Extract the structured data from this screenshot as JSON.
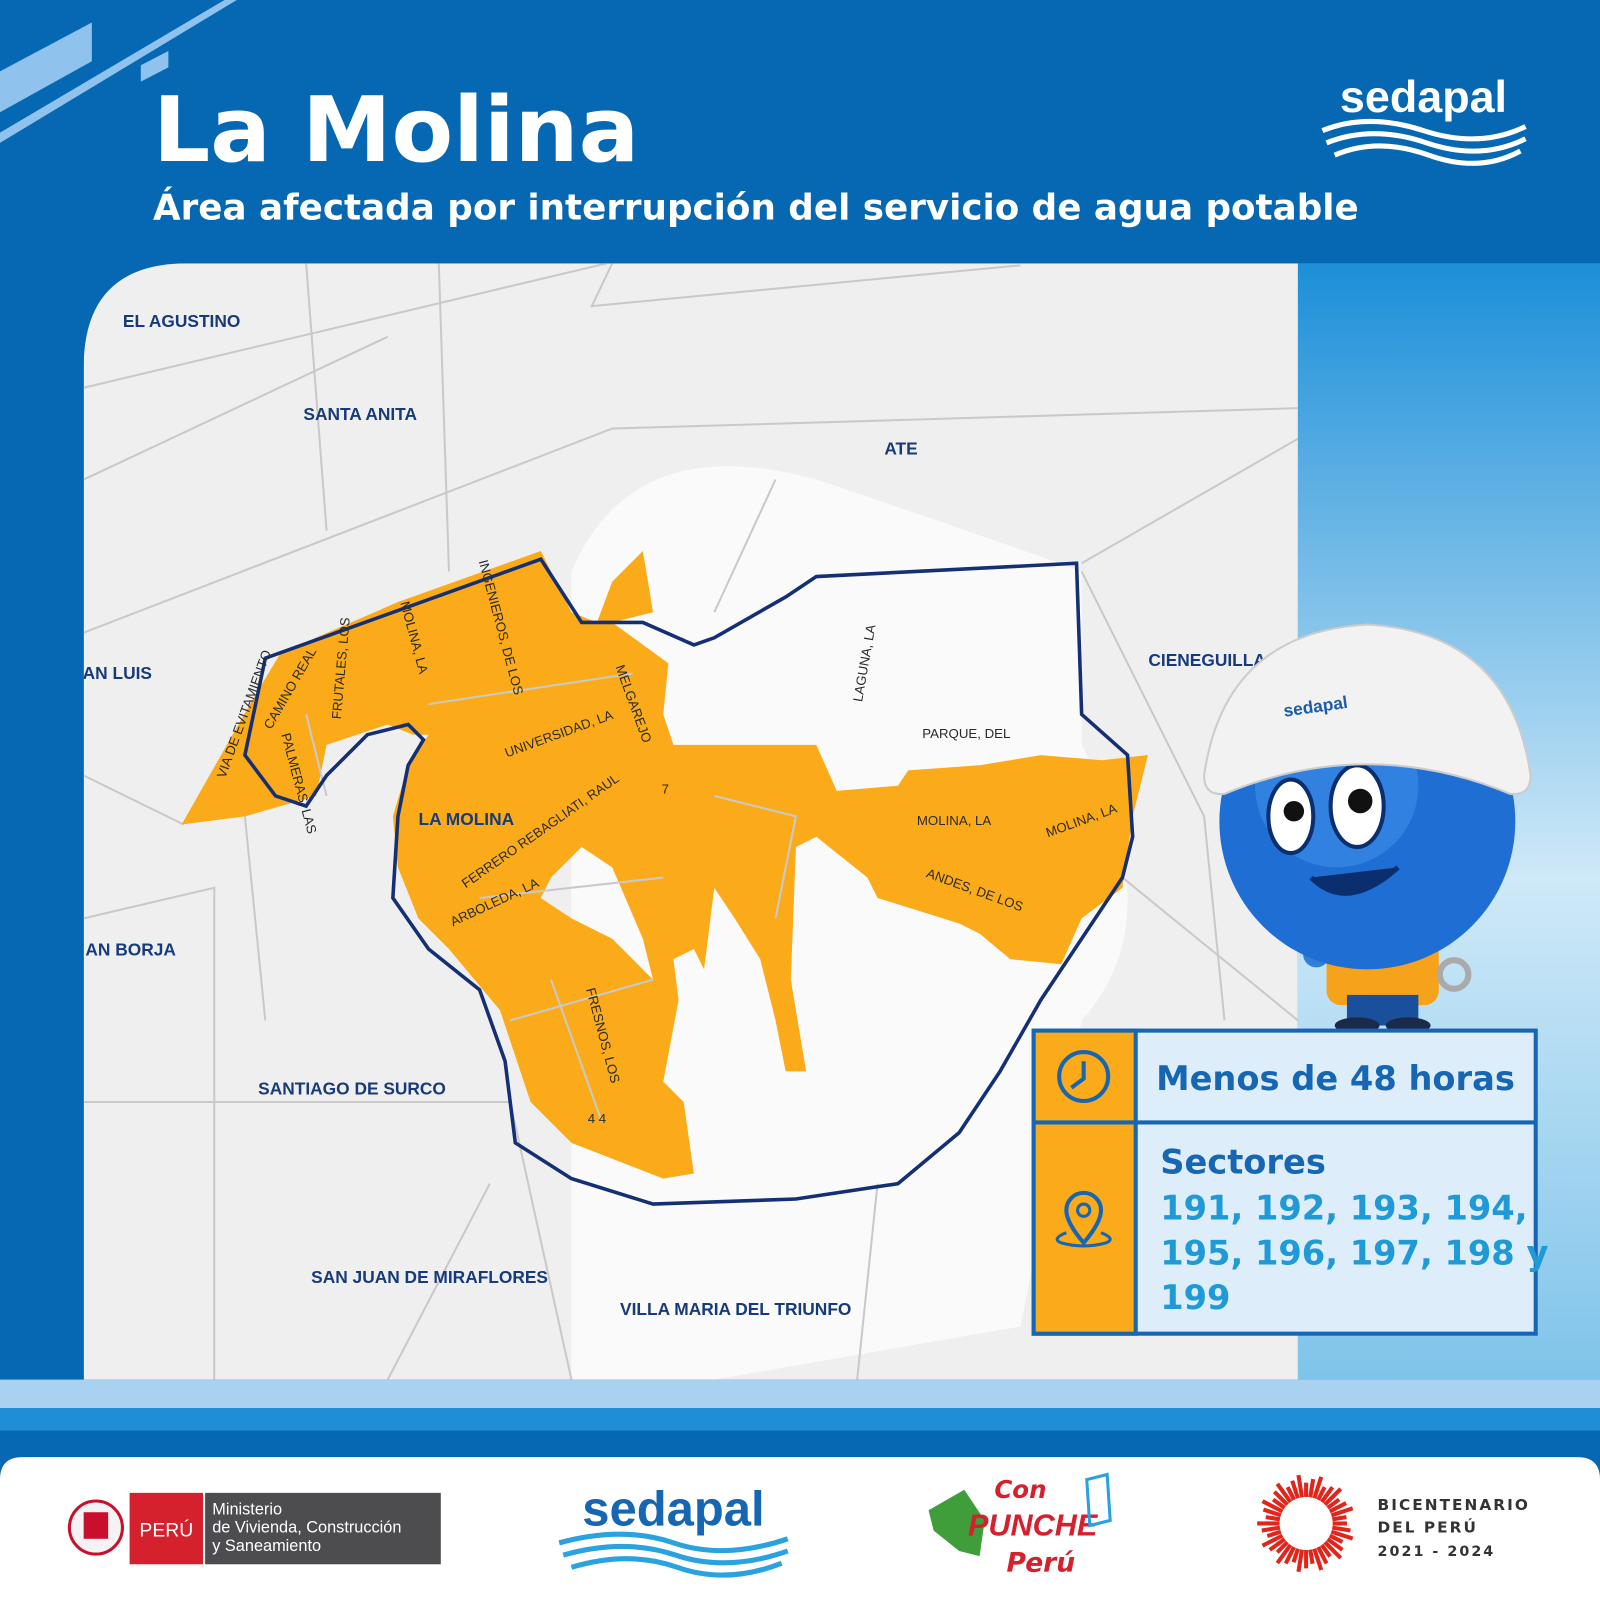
{
  "header": {
    "title": "La Molina",
    "subtitle": "Área afectada por interrupción del servicio de agua potable",
    "logo": "sedapal"
  },
  "map": {
    "area_label": "LA MOLINA",
    "districts": [
      "EL AGUSTINO",
      "SANTA ANITA",
      "ATE",
      "CIENEGUILLA",
      "AN LUIS",
      "AN BORJA",
      "SANTIAGO DE SURCO",
      "SAN JUAN DE MIRAFLORES",
      "VILLA MARIA DEL TRIUNFO"
    ],
    "streets": [
      "VIA DE EVITAMIENTO",
      "CAMINO REAL",
      "FRUTALES, LOS",
      "PALMERAS, LAS",
      "MOLINA, LA",
      "INGENIEROS, DE LOS",
      "MELGAREJO",
      "UNIVERSIDAD, LA",
      "FERRERO REBAGLIATI, RAUL",
      "ARBOLEDA, LA",
      "FRESNOS, LOS",
      "LAGUNA, LA",
      "PARQUE, DEL",
      "MOLINA, LA",
      "MOLINA, LA",
      "ANDES, DE LOS",
      "7",
      "4 4"
    ]
  },
  "mascot": {
    "helmet_logo": "sedapal"
  },
  "info": {
    "duration": "Menos de 48 horas",
    "sectors_title": "Sectores",
    "sectors_lines": [
      "191, 192, 193, 194,",
      "195, 196, 197, 198 y",
      "199"
    ]
  },
  "footer": {
    "peru": "PERÚ",
    "ministry_lines": [
      "Ministerio",
      "de Vivienda, Construcción",
      "y Saneamiento"
    ],
    "sedapal": "sedapal",
    "punche_lines": [
      "Con",
      "PUNCHE",
      "Perú"
    ],
    "bicentenario_lines": [
      "BICENTENARIO",
      "DEL PERÚ",
      "2021 - 2024"
    ]
  }
}
